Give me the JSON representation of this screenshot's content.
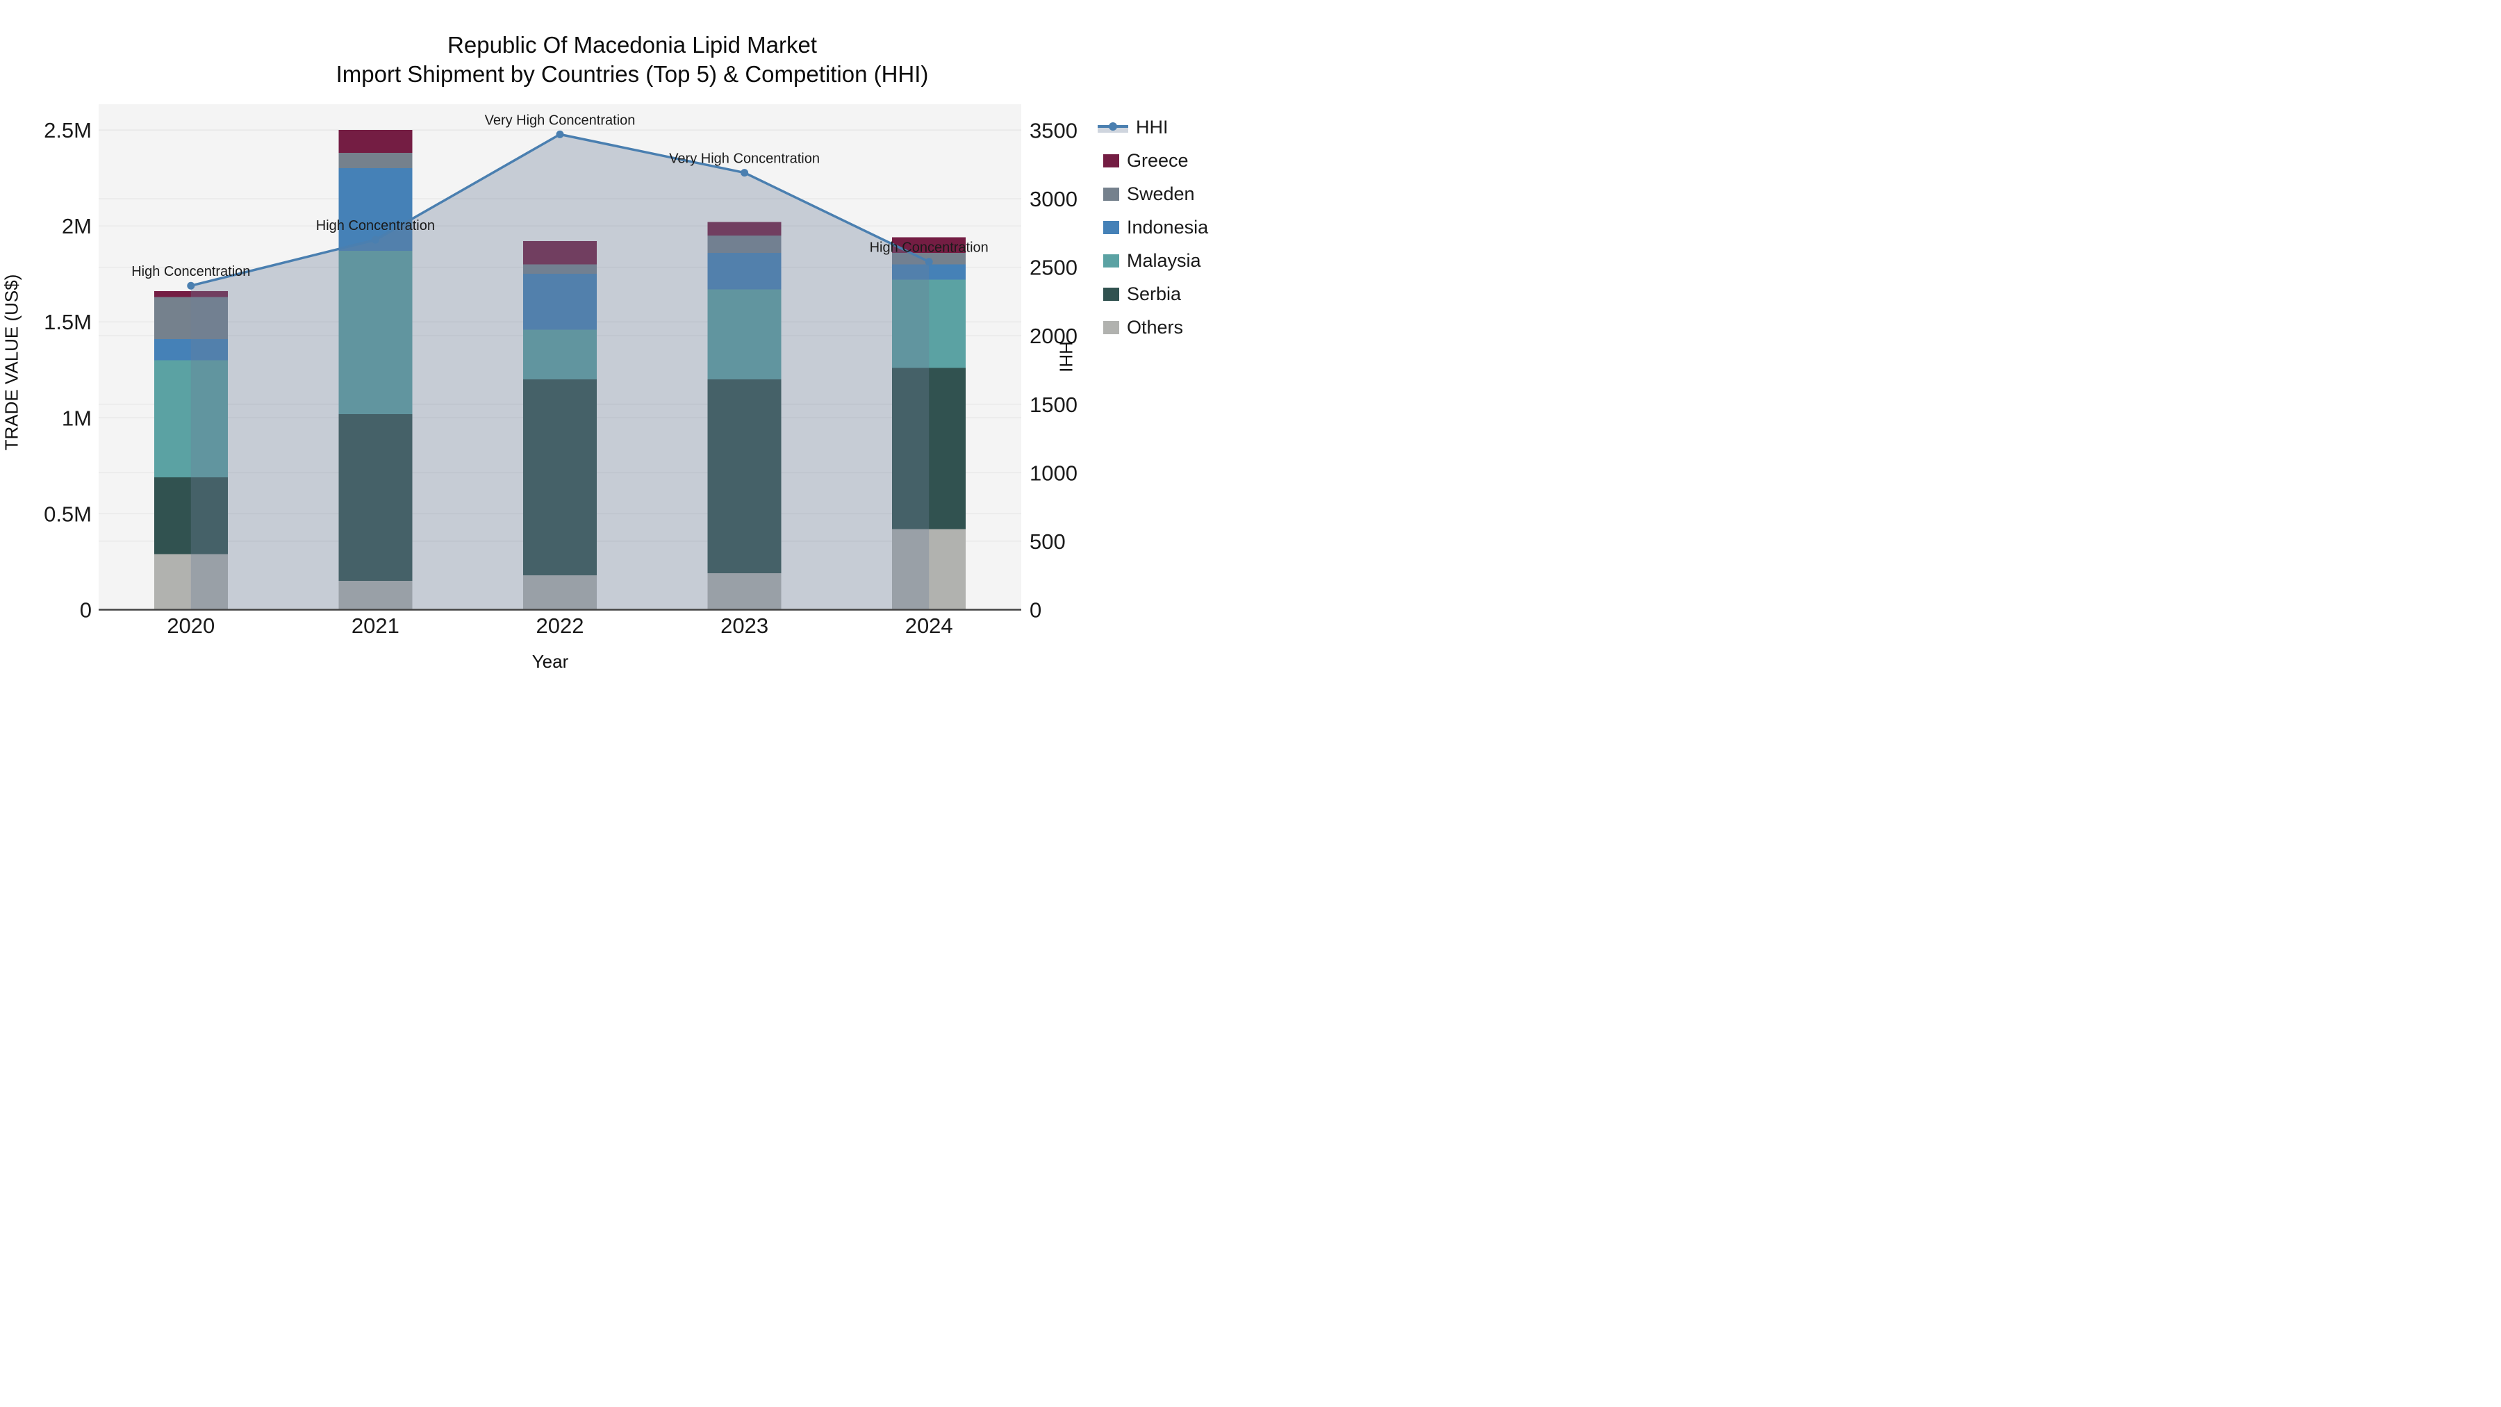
{
  "chart_data": {
    "type": "stacked-bar+line",
    "title_lines": {
      "line1": "Republic Of Macedonia Lipid Market",
      "line2": "Import Shipment by Countries (Top 5) & Competition (HHI)"
    },
    "categories": [
      "2020",
      "2021",
      "2022",
      "2023",
      "2024"
    ],
    "xlabel": "Year",
    "ylabel_left": "TRADE VALUE (US$)",
    "ylabel_right": "HHI",
    "series": [
      {
        "name": "Greece",
        "color": "#741d43",
        "values": [
          30000,
          120000,
          120000,
          70000,
          80000
        ]
      },
      {
        "name": "Sweden",
        "color": "#75818d",
        "values": [
          220000,
          80000,
          50000,
          90000,
          60000
        ]
      },
      {
        "name": "Indonesia",
        "color": "#4581b7",
        "values": [
          110000,
          430000,
          290000,
          190000,
          80000
        ]
      },
      {
        "name": "Malaysia",
        "color": "#5ba2a3",
        "values": [
          610000,
          850000,
          260000,
          470000,
          460000
        ]
      },
      {
        "name": "Serbia",
        "color": "#315250",
        "values": [
          400000,
          870000,
          1020000,
          1010000,
          840000
        ]
      },
      {
        "name": "Others",
        "color": "#b1b2af",
        "values": [
          290000,
          150000,
          180000,
          190000,
          420000
        ]
      }
    ],
    "stack_order_bottom_to_top": [
      "Others",
      "Serbia",
      "Malaysia",
      "Indonesia",
      "Sweden",
      "Greece"
    ],
    "bar_totals": [
      1660000,
      2500000,
      1920000,
      2020000,
      1940000
    ],
    "line_series": {
      "name": "HHI",
      "values": [
        2365,
        2700,
        3470,
        3190,
        2540
      ],
      "color": "#4a7fb0",
      "area_color": "rgba(107,125,152,0.34)"
    },
    "annotations": [
      "High Concentration",
      "High Concentration",
      "Very High Concentration",
      "Very High Concentration",
      "High Concentration"
    ],
    "left_ticks": [
      {
        "value": 0,
        "label": "0"
      },
      {
        "value": 500000,
        "label": "0.5M"
      },
      {
        "value": 1000000,
        "label": "1M"
      },
      {
        "value": 1500000,
        "label": "1.5M"
      },
      {
        "value": 2000000,
        "label": "2M"
      },
      {
        "value": 2500000,
        "label": "2.5M"
      }
    ],
    "right_ticks": [
      {
        "value": 0,
        "label": "0"
      },
      {
        "value": 500,
        "label": "500"
      },
      {
        "value": 1000,
        "label": "1000"
      },
      {
        "value": 1500,
        "label": "1500"
      },
      {
        "value": 2000,
        "label": "2000"
      },
      {
        "value": 2500,
        "label": "2500"
      },
      {
        "value": 3000,
        "label": "3000"
      },
      {
        "value": 3500,
        "label": "3500"
      }
    ],
    "ylim_left": [
      0,
      2634000
    ],
    "ylim_right": [
      0,
      3690
    ],
    "grid": true,
    "legend_position": "right",
    "plot_bg": "#f4f4f4",
    "grid_color": "#e9e9e9",
    "axis_line_color": "#444444",
    "text_color": "#1a1a1a"
  }
}
